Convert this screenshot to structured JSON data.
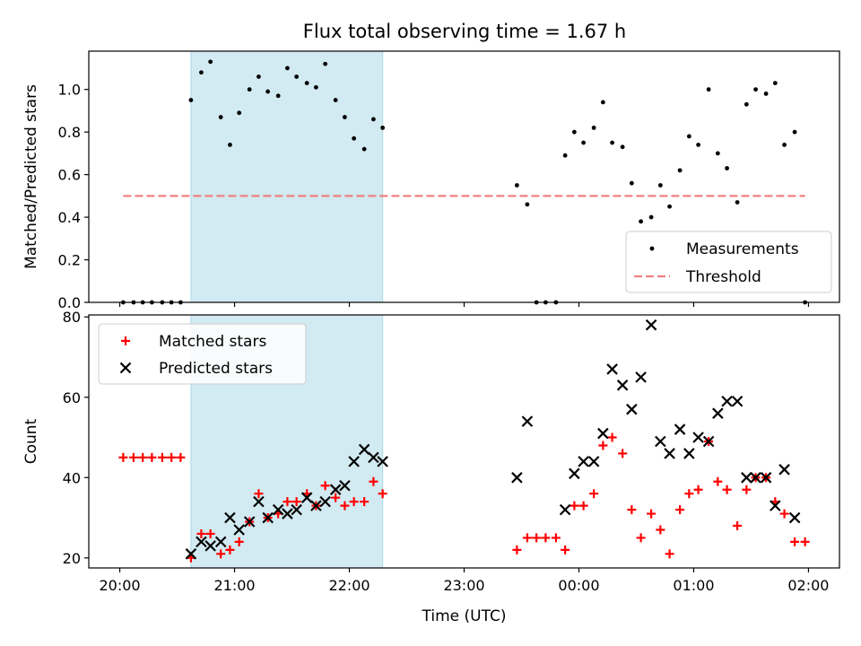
{
  "title": "Flux total observing time = 1.67 h",
  "colors": {
    "measurement": "#000000",
    "threshold": "#f08080",
    "matched": "#ff0000",
    "predicted": "#000000",
    "shade": "#add8e6"
  },
  "chart_data": [
    {
      "type": "scatter",
      "ylabel": "Matched/Predicted stars",
      "ylim": [
        0,
        1.18
      ],
      "yticks": [
        "0.0",
        "0.2",
        "0.4",
        "0.6",
        "0.8",
        "1.0"
      ],
      "xlim": [
        19.73,
        26.27
      ],
      "x_axis_unit": "hours since 20:00 UTC on the first day; ticks labelled by clock time",
      "xtick_labels": [],
      "shaded_interval": [
        20.62,
        22.29
      ],
      "legend": {
        "placement": "lower right",
        "entries": [
          "Measurements",
          "Threshold"
        ]
      },
      "threshold": {
        "name": "Threshold",
        "value": 0.5,
        "x": [
          20.03,
          25.97
        ],
        "style": "dashed"
      },
      "series": [
        {
          "name": "Measurements",
          "marker": "dot",
          "points": [
            [
              20.03,
              0.0
            ],
            [
              20.12,
              0.0
            ],
            [
              20.2,
              0.0
            ],
            [
              20.28,
              0.0
            ],
            [
              20.37,
              0.0
            ],
            [
              20.45,
              0.0
            ],
            [
              20.53,
              0.0
            ],
            [
              20.62,
              0.95
            ],
            [
              20.71,
              1.08
            ],
            [
              20.79,
              1.13
            ],
            [
              20.88,
              0.87
            ],
            [
              20.96,
              0.74
            ],
            [
              21.04,
              0.89
            ],
            [
              21.13,
              1.0
            ],
            [
              21.21,
              1.06
            ],
            [
              21.29,
              0.99
            ],
            [
              21.38,
              0.97
            ],
            [
              21.46,
              1.1
            ],
            [
              21.54,
              1.06
            ],
            [
              21.63,
              1.03
            ],
            [
              21.71,
              1.01
            ],
            [
              21.79,
              1.12
            ],
            [
              21.88,
              0.95
            ],
            [
              21.96,
              0.87
            ],
            [
              22.04,
              0.77
            ],
            [
              22.13,
              0.72
            ],
            [
              22.21,
              0.86
            ],
            [
              22.29,
              0.82
            ],
            [
              23.46,
              0.55
            ],
            [
              23.55,
              0.46
            ],
            [
              23.63,
              0.0
            ],
            [
              23.71,
              0.0
            ],
            [
              23.8,
              0.0
            ],
            [
              23.88,
              0.69
            ],
            [
              23.96,
              0.8
            ],
            [
              24.04,
              0.75
            ],
            [
              24.13,
              0.82
            ],
            [
              24.21,
              0.94
            ],
            [
              24.29,
              0.75
            ],
            [
              24.38,
              0.73
            ],
            [
              24.46,
              0.56
            ],
            [
              24.54,
              0.38
            ],
            [
              24.63,
              0.4
            ],
            [
              24.71,
              0.55
            ],
            [
              24.79,
              0.45
            ],
            [
              24.88,
              0.62
            ],
            [
              24.96,
              0.78
            ],
            [
              25.04,
              0.74
            ],
            [
              25.13,
              1.0
            ],
            [
              25.21,
              0.7
            ],
            [
              25.29,
              0.63
            ],
            [
              25.38,
              0.47
            ],
            [
              25.46,
              0.93
            ],
            [
              25.54,
              1.0
            ],
            [
              25.63,
              0.98
            ],
            [
              25.71,
              1.03
            ],
            [
              25.79,
              0.74
            ],
            [
              25.88,
              0.8
            ],
            [
              25.97,
              0.0
            ]
          ]
        }
      ]
    },
    {
      "type": "scatter",
      "xlabel": "Time (UTC)",
      "ylabel": "Count",
      "ylim": [
        17.5,
        80.5
      ],
      "yticks": [
        "20",
        "40",
        "60",
        "80"
      ],
      "xlim": [
        19.73,
        26.27
      ],
      "x_axis_unit": "hours since 20:00 UTC on the first day; ticks labelled by clock time",
      "xtick_values": [
        20,
        21,
        22,
        23,
        24,
        25,
        26
      ],
      "xtick_labels": [
        "20:00",
        "21:00",
        "22:00",
        "23:00",
        "00:00",
        "01:00",
        "02:00"
      ],
      "shaded_interval": [
        20.62,
        22.29
      ],
      "legend": {
        "placement": "upper left",
        "entries": [
          "Matched stars",
          "Predicted stars"
        ]
      },
      "series": [
        {
          "name": "Matched stars",
          "marker": "plus",
          "points": [
            [
              20.03,
              45
            ],
            [
              20.12,
              45
            ],
            [
              20.2,
              45
            ],
            [
              20.28,
              45
            ],
            [
              20.37,
              45
            ],
            [
              20.45,
              45
            ],
            [
              20.53,
              45
            ],
            [
              20.62,
              20
            ],
            [
              20.71,
              26
            ],
            [
              20.79,
              26
            ],
            [
              20.88,
              21
            ],
            [
              20.96,
              22
            ],
            [
              21.04,
              24
            ],
            [
              21.13,
              29
            ],
            [
              21.21,
              36
            ],
            [
              21.29,
              30
            ],
            [
              21.38,
              31
            ],
            [
              21.46,
              34
            ],
            [
              21.54,
              34
            ],
            [
              21.63,
              36
            ],
            [
              21.71,
              33
            ],
            [
              21.79,
              38
            ],
            [
              21.88,
              35
            ],
            [
              21.96,
              33
            ],
            [
              22.04,
              34
            ],
            [
              22.13,
              34
            ],
            [
              22.21,
              39
            ],
            [
              22.29,
              36
            ],
            [
              23.46,
              22
            ],
            [
              23.55,
              25
            ],
            [
              23.63,
              25
            ],
            [
              23.71,
              25
            ],
            [
              23.8,
              25
            ],
            [
              23.88,
              22
            ],
            [
              23.96,
              33
            ],
            [
              24.04,
              33
            ],
            [
              24.13,
              36
            ],
            [
              24.21,
              48
            ],
            [
              24.29,
              50
            ],
            [
              24.38,
              46
            ],
            [
              24.46,
              32
            ],
            [
              24.54,
              25
            ],
            [
              24.63,
              31
            ],
            [
              24.71,
              27
            ],
            [
              24.79,
              21
            ],
            [
              24.88,
              32
            ],
            [
              24.96,
              36
            ],
            [
              25.04,
              37
            ],
            [
              25.13,
              49
            ],
            [
              25.21,
              39
            ],
            [
              25.29,
              37
            ],
            [
              25.38,
              28
            ],
            [
              25.46,
              37
            ],
            [
              25.54,
              40
            ],
            [
              25.63,
              40
            ],
            [
              25.71,
              34
            ],
            [
              25.79,
              31
            ],
            [
              25.88,
              24
            ],
            [
              25.97,
              24
            ]
          ]
        },
        {
          "name": "Predicted stars",
          "marker": "x",
          "points": [
            [
              20.62,
              21
            ],
            [
              20.71,
              24
            ],
            [
              20.79,
              23
            ],
            [
              20.88,
              24
            ],
            [
              20.96,
              30
            ],
            [
              21.04,
              27
            ],
            [
              21.13,
              29
            ],
            [
              21.21,
              34
            ],
            [
              21.29,
              30
            ],
            [
              21.38,
              32
            ],
            [
              21.46,
              31
            ],
            [
              21.54,
              32
            ],
            [
              21.63,
              35
            ],
            [
              21.71,
              33
            ],
            [
              21.79,
              34
            ],
            [
              21.88,
              37
            ],
            [
              21.96,
              38
            ],
            [
              22.04,
              44
            ],
            [
              22.13,
              47
            ],
            [
              22.21,
              45
            ],
            [
              22.29,
              44
            ],
            [
              23.46,
              40
            ],
            [
              23.55,
              54
            ],
            [
              23.88,
              32
            ],
            [
              23.96,
              41
            ],
            [
              24.04,
              44
            ],
            [
              24.13,
              44
            ],
            [
              24.21,
              51
            ],
            [
              24.29,
              67
            ],
            [
              24.38,
              63
            ],
            [
              24.46,
              57
            ],
            [
              24.54,
              65
            ],
            [
              24.63,
              78
            ],
            [
              24.71,
              49
            ],
            [
              24.79,
              46
            ],
            [
              24.88,
              52
            ],
            [
              24.96,
              46
            ],
            [
              25.04,
              50
            ],
            [
              25.13,
              49
            ],
            [
              25.21,
              56
            ],
            [
              25.29,
              59
            ],
            [
              25.38,
              59
            ],
            [
              25.46,
              40
            ],
            [
              25.54,
              40
            ],
            [
              25.63,
              40
            ],
            [
              25.71,
              33
            ],
            [
              25.79,
              42
            ],
            [
              25.88,
              30
            ]
          ]
        }
      ]
    }
  ]
}
